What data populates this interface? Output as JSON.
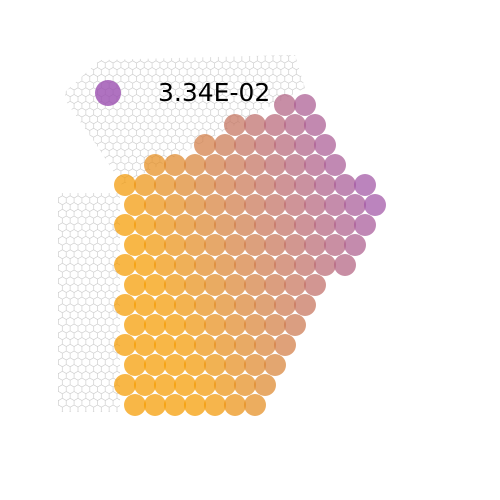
{
  "chart_data": {
    "type": "scatter",
    "colors": [
      "#f59b00",
      "#9b4fb0"
    ],
    "legend": {
      "value": 0.0334,
      "label": "3.34E-02"
    },
    "x": [
      8,
      9,
      5.5,
      6.5,
      7.5,
      8.5,
      9.5,
      4,
      5,
      6,
      7,
      8,
      9,
      10,
      1.5,
      2.5,
      3.5,
      4.5,
      5.5,
      6.5,
      7.5,
      8.5,
      9.5,
      10.5,
      0,
      1,
      2,
      3,
      4,
      5,
      6,
      7,
      8,
      9,
      10,
      11,
      12,
      0.5,
      1.5,
      2.5,
      3.5,
      4.5,
      5.5,
      6.5,
      7.5,
      8.5,
      9.5,
      10.5,
      11.5,
      12.5,
      0,
      1,
      2,
      3,
      4,
      5,
      6,
      7,
      8,
      9,
      10,
      11,
      12,
      0.5,
      1.5,
      2.5,
      3.5,
      4.5,
      5.5,
      6.5,
      7.5,
      8.5,
      9.5,
      10.5,
      11.5,
      0,
      1,
      2,
      3,
      4,
      5,
      6,
      7,
      8,
      9,
      10,
      11,
      0.5,
      1.5,
      2.5,
      3.5,
      4.5,
      5.5,
      6.5,
      7.5,
      8.5,
      9.5,
      0,
      1,
      2,
      3,
      4,
      5,
      6,
      7,
      8,
      9,
      0.5,
      1.5,
      2.5,
      3.5,
      4.5,
      5.5,
      6.5,
      7.5,
      8.5,
      0,
      1,
      2,
      3,
      4,
      5,
      6,
      7,
      8,
      0.5,
      1.5,
      2.5,
      3.5,
      4.5,
      5.5,
      6.5,
      7.5,
      0,
      1,
      2,
      3,
      4,
      5,
      6,
      7,
      0.5,
      1.5,
      2.5,
      3.5,
      4.5,
      5.5,
      6.5
    ],
    "y": [
      15,
      15,
      14,
      14,
      14,
      14,
      14,
      13,
      13,
      13,
      13,
      13,
      13,
      13,
      12,
      12,
      12,
      12,
      12,
      12,
      12,
      12,
      12,
      12,
      11,
      11,
      11,
      11,
      11,
      11,
      11,
      11,
      11,
      11,
      11,
      11,
      11,
      10,
      10,
      10,
      10,
      10,
      10,
      10,
      10,
      10,
      10,
      10,
      10,
      10,
      9,
      9,
      9,
      9,
      9,
      9,
      9,
      9,
      9,
      9,
      9,
      9,
      9,
      8,
      8,
      8,
      8,
      8,
      8,
      8,
      8,
      8,
      8,
      8,
      8,
      7,
      7,
      7,
      7,
      7,
      7,
      7,
      7,
      7,
      7,
      7,
      7,
      6,
      6,
      6,
      6,
      6,
      6,
      6,
      6,
      6,
      6,
      5,
      5,
      5,
      5,
      5,
      5,
      5,
      5,
      5,
      5,
      4,
      4,
      4,
      4,
      4,
      4,
      4,
      4,
      4,
      3,
      3,
      3,
      3,
      3,
      3,
      3,
      3,
      3,
      2,
      2,
      2,
      2,
      2,
      2,
      2,
      2,
      1,
      1,
      1,
      1,
      1,
      1,
      1,
      1,
      0,
      0,
      0,
      0,
      0,
      0,
      0
    ],
    "values": [
      0.025,
      0.0275,
      0.01775,
      0.02025,
      0.02275,
      0.02525,
      0.02775,
      0.013,
      0.0155,
      0.018,
      0.0205,
      0.023,
      0.0255,
      0.028,
      0.00575,
      0.00825,
      0.01075,
      0.01325,
      0.01575,
      0.01825,
      0.02075,
      0.02325,
      0.02575,
      0.02825,
      0.001,
      0.0035,
      0.006,
      0.0085,
      0.011,
      0.0135,
      0.016,
      0.0185,
      0.021,
      0.0235,
      0.026,
      0.0285,
      0.031,
      0.00125,
      0.00375,
      0.00625,
      0.00875,
      0.01125,
      0.01375,
      0.01625,
      0.01875,
      0.02125,
      0.02375,
      0.02625,
      0.02875,
      0.03125,
      0,
      0.0015,
      0.004,
      0.0065,
      0.009,
      0.0115,
      0.014,
      0.0165,
      0.019,
      0.0215,
      0.024,
      0.0265,
      0.029,
      0,
      0.00175,
      0.00425,
      0.00675,
      0.00925,
      0.01175,
      0.01425,
      0.01675,
      0.01925,
      0.02175,
      0.02425,
      0.02675,
      0,
      0,
      0.002,
      0.0045,
      0.007,
      0.0095,
      0.012,
      0.0145,
      0.017,
      0.0195,
      0.022,
      0.0245,
      0,
      0,
      0.00225,
      0.00475,
      0.00725,
      0.00975,
      0.01225,
      0.01475,
      0.01725,
      0.01975,
      0,
      0,
      0.0005,
      0.0025,
      0.005,
      0.0075,
      0.01,
      0.0125,
      0.015,
      0.0175,
      0,
      0,
      0.00025,
      0.00275,
      0.00525,
      0.00775,
      0.01025,
      0.01275,
      0.01525,
      0,
      0,
      0,
      0.0005,
      0.003,
      0.0055,
      0.008,
      0.0105,
      0.013,
      0,
      0,
      0,
      0.00075,
      0.00325,
      0.00575,
      0.00825,
      0.01075,
      0,
      0,
      0,
      0,
      0.001,
      0.0035,
      0.006,
      0.0085,
      0,
      0,
      0,
      0,
      0.00125,
      0.00375,
      0.00625
    ]
  }
}
